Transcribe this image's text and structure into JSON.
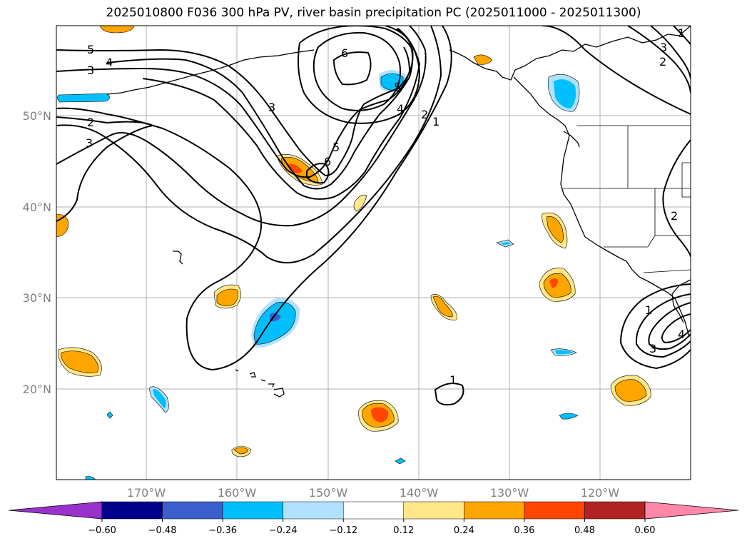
{
  "map": {
    "title": "2025010800 F036 300 hPa PV, river basin precipitation PC (2025011000 - 2025011300)",
    "lat_ticks": [
      "50°N",
      "40°N",
      "30°N",
      "20°N"
    ],
    "lon_ticks": [
      "170°W",
      "160°W",
      "150°W",
      "140°W",
      "130°W",
      "120°W"
    ],
    "contour_labels": [
      "5",
      "4",
      "3",
      "2",
      "3",
      "3",
      "6",
      "5",
      "4",
      "2",
      "1",
      "5",
      "6",
      "1",
      "3",
      "2",
      "2",
      "1",
      "3",
      "4",
      "1"
    ],
    "colorbar": {
      "levels": [
        "−0.60",
        "−0.48",
        "−0.36",
        "−0.24",
        "−0.12",
        "0.12",
        "0.24",
        "0.36",
        "0.48",
        "0.60"
      ],
      "colors": [
        "#9932CC",
        "#00008B",
        "#3A5FCD",
        "#00BFFF",
        "#B0E2FF",
        "#FFFFFF",
        "#FFE78A",
        "#FFA500",
        "#FF4500",
        "#B22222",
        "#FF88AA"
      ]
    },
    "palette": {
      "yellow": "#FFE78A",
      "orange": "#FFA500",
      "red": "#FF4500",
      "light_blue": "#B0E2FF",
      "blue": "#00BFFF",
      "dark_blue": "#3A5FCD"
    }
  }
}
